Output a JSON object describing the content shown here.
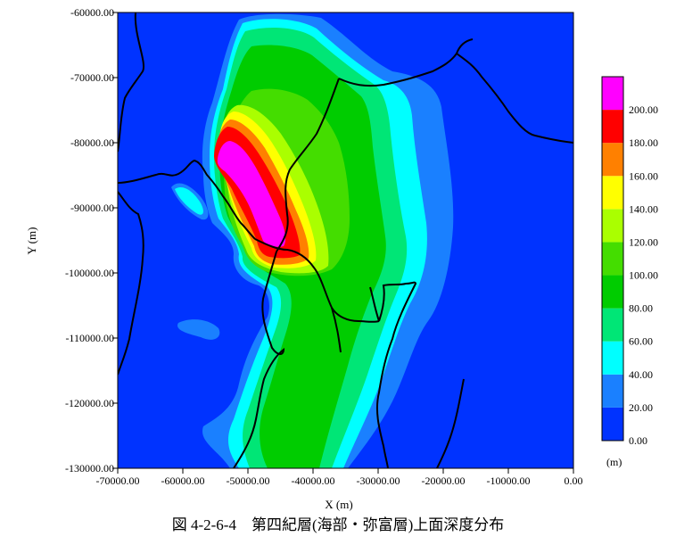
{
  "caption": "図 4-2-6-4　第四紀層(海部・弥富層)上面深度分布",
  "chart_data": {
    "type": "heatmap",
    "xlabel": "X (m)",
    "ylabel": "Y (m)",
    "xlim": [
      -70000,
      0
    ],
    "ylim": [
      -130000,
      -60000
    ],
    "x_ticks": [
      "-70000.00",
      "-60000.00",
      "-50000.00",
      "-40000.00",
      "-30000.00",
      "-20000.00",
      "-10000.00",
      "0.00"
    ],
    "y_ticks": [
      "-60000.00",
      "-70000.00",
      "-80000.00",
      "-90000.00",
      "-100000.00",
      "-110000.00",
      "-120000.00",
      "-130000.00"
    ],
    "colorbar": {
      "unit": "(m)",
      "levels": [
        "0.00",
        "20.00",
        "40.00",
        "60.00",
        "80.00",
        "100.00",
        "120.00",
        "140.00",
        "160.00",
        "180.00",
        "200.00"
      ],
      "colors": [
        "#0033ff",
        "#1a80ff",
        "#00ffff",
        "#00e676",
        "#00cc00",
        "#44dd00",
        "#aaff00",
        "#ffff00",
        "#ff8000",
        "#ff0000",
        "#ff00ff"
      ]
    },
    "grid": false
  }
}
